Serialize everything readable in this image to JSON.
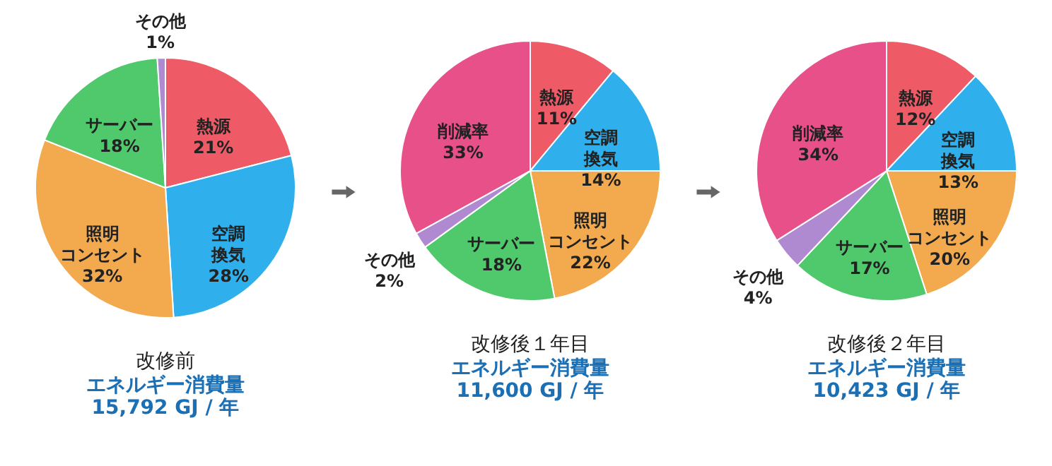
{
  "chart_data": [
    {
      "type": "pie",
      "title": "改修前",
      "subtitle": "エネルギー消費量",
      "annotations": [
        "15,792 GJ / 年"
      ],
      "categories": [
        "熱源",
        "空調換気",
        "照明コンセント",
        "サーバー",
        "その他"
      ],
      "values": [
        21,
        28,
        32,
        18,
        1
      ],
      "colors": [
        "#ee5a66",
        "#2fb0ec",
        "#f3a94e",
        "#4fc96c",
        "#b08ad0"
      ],
      "value_labels": [
        "21%",
        "28%",
        "32%",
        "18%",
        "1%"
      ],
      "legend": false
    },
    {
      "type": "pie",
      "title": "改修後１年目",
      "subtitle": "エネルギー消費量",
      "annotations": [
        "11,600 GJ / 年"
      ],
      "categories": [
        "熱源",
        "空調換気",
        "照明コンセント",
        "サーバー",
        "その他",
        "削減率"
      ],
      "values": [
        11,
        14,
        22,
        18,
        2,
        33
      ],
      "colors": [
        "#ee5a66",
        "#2fb0ec",
        "#f3a94e",
        "#4fc96c",
        "#b08ad0",
        "#e8508a"
      ],
      "value_labels": [
        "11%",
        "14%",
        "22%",
        "18%",
        "2%",
        "33%"
      ],
      "legend": false
    },
    {
      "type": "pie",
      "title": "改修後２年目",
      "subtitle": "エネルギー消費量",
      "annotations": [
        "10,423 GJ / 年"
      ],
      "categories": [
        "熱源",
        "空調換気",
        "照明コンセント",
        "サーバー",
        "その他",
        "削減率"
      ],
      "values": [
        12,
        13,
        20,
        17,
        4,
        34
      ],
      "colors": [
        "#ee5a66",
        "#2fb0ec",
        "#f3a94e",
        "#4fc96c",
        "#b08ad0",
        "#e8508a"
      ],
      "value_labels": [
        "12%",
        "13%",
        "20%",
        "17%",
        "4%",
        "34%"
      ],
      "legend": false
    }
  ]
}
